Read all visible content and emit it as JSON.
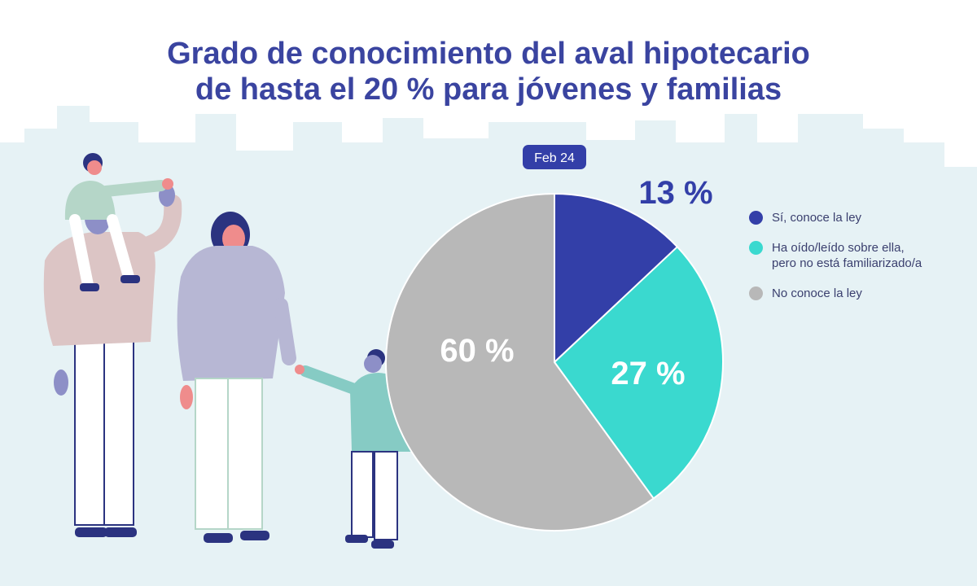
{
  "title_lines": [
    "Grado de conocimiento del aval hipotecario",
    "de hasta el 20 % para jóvenes y familias"
  ],
  "colors": {
    "title": "#3a44a0",
    "background_skyline": "#e6f2f5",
    "series": [
      "#333fa8",
      "#3ad9cf",
      "#b8b8b8"
    ]
  },
  "illustration": "family-of-four-illustration",
  "chart_data": {
    "type": "pie",
    "period_label": "Feb 24",
    "categories": [
      "Sí, conoce la ley",
      "Ha oído/leído sobre ella, pero no está familiarizado/a",
      "No conoce la ley"
    ],
    "legend_lines": [
      [
        "Sí, conoce la ley"
      ],
      [
        "Ha oído/leído sobre ella,",
        "pero no está familiarizado/a"
      ],
      [
        "No conoce la ley"
      ]
    ],
    "values": [
      13,
      27,
      60
    ],
    "data_labels": [
      "13 %",
      "27 %",
      "60 %"
    ],
    "unit": "%",
    "legend_position": "right"
  }
}
